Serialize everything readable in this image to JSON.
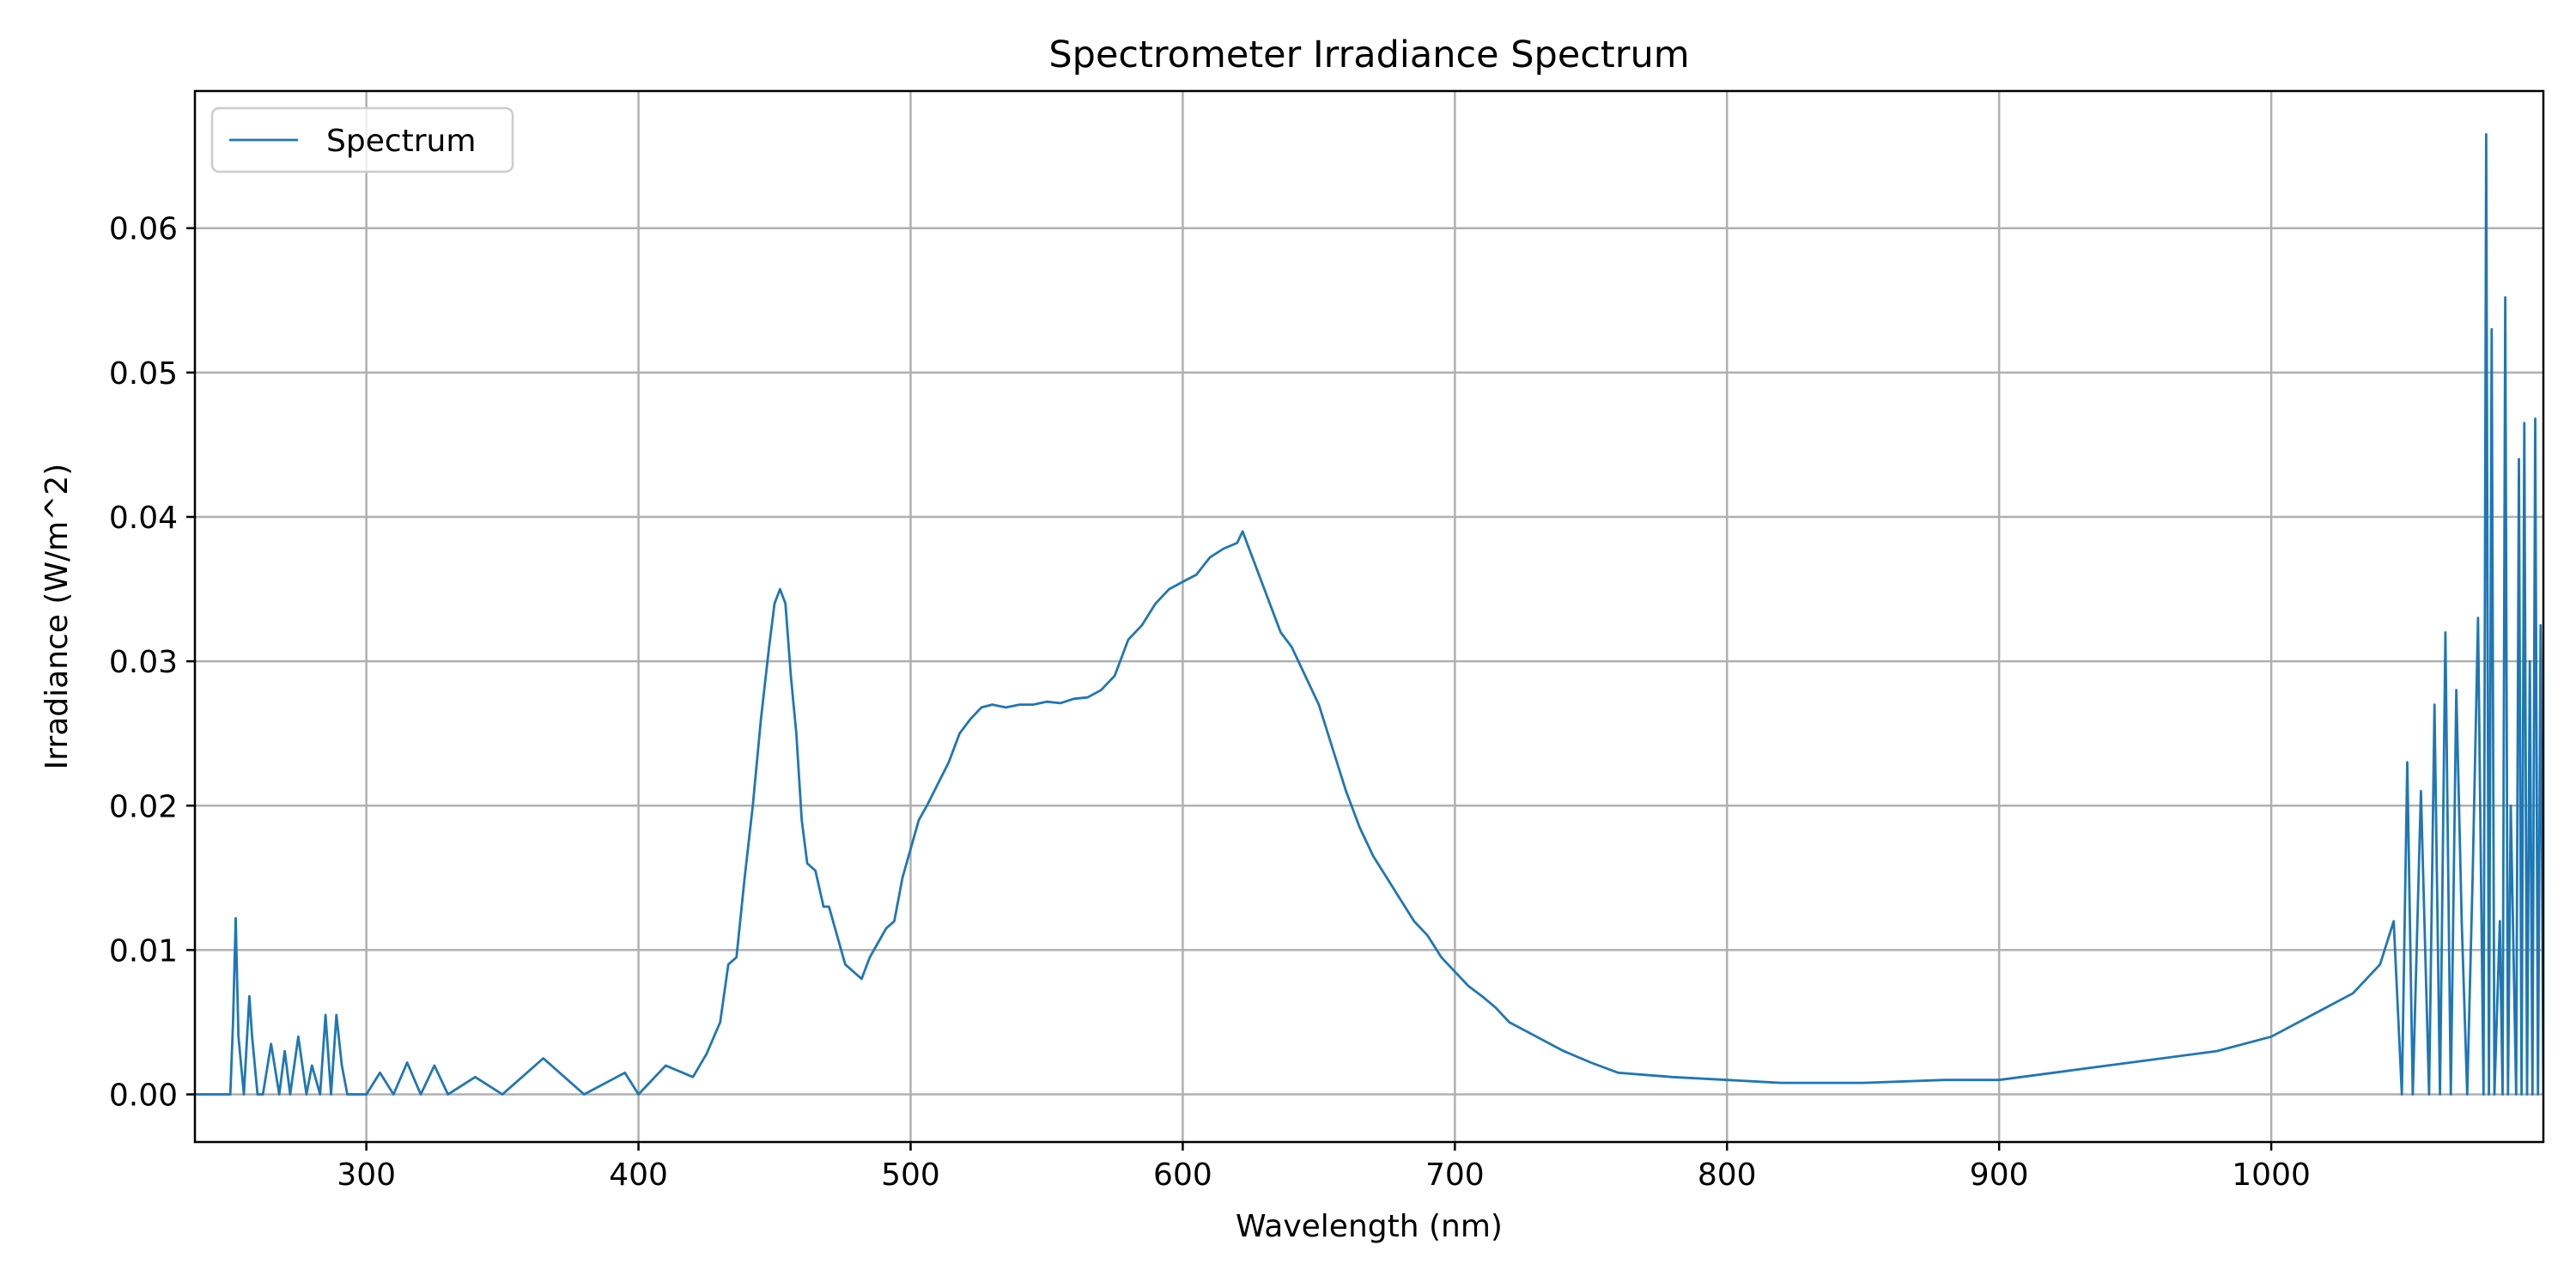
{
  "chart_data": {
    "type": "line",
    "title": "Spectrometer Irradiance Spectrum",
    "xlabel": "Wavelength (nm)",
    "ylabel": "Irradiance (W/m^2)",
    "xlim": [
      237,
      1100
    ],
    "ylim": [
      -0.0033,
      0.0695
    ],
    "xticks": [
      300,
      400,
      500,
      600,
      700,
      800,
      900,
      1000
    ],
    "yticks": [
      0.0,
      0.01,
      0.02,
      0.03,
      0.04,
      0.05,
      0.06
    ],
    "ytick_labels": [
      "0.00",
      "0.01",
      "0.02",
      "0.03",
      "0.04",
      "0.05",
      "0.06"
    ],
    "grid": true,
    "legend": {
      "position": "top-left"
    },
    "color": "#1f77b4",
    "series": [
      {
        "name": "Spectrum",
        "x": [
          237,
          245,
          250,
          251,
          252,
          253,
          255,
          257,
          258,
          260,
          262,
          265,
          268,
          270,
          272,
          275,
          278,
          280,
          283,
          285,
          287,
          289,
          291,
          293,
          296,
          300,
          305,
          310,
          315,
          320,
          325,
          330,
          340,
          350,
          365,
          380,
          395,
          400,
          410,
          420,
          425,
          430,
          433,
          436,
          439,
          442,
          445,
          448,
          450,
          452,
          454,
          456,
          458,
          460,
          462,
          465,
          468,
          470,
          473,
          476,
          479,
          482,
          485,
          488,
          491,
          494,
          497,
          500,
          503,
          506,
          510,
          514,
          518,
          522,
          526,
          530,
          535,
          540,
          545,
          550,
          555,
          560,
          565,
          570,
          575,
          580,
          585,
          590,
          595,
          600,
          605,
          610,
          615,
          620,
          622,
          625,
          628,
          632,
          636,
          640,
          645,
          650,
          655,
          660,
          665,
          670,
          675,
          680,
          685,
          690,
          695,
          700,
          705,
          710,
          715,
          720,
          730,
          740,
          750,
          760,
          780,
          800,
          820,
          850,
          880,
          900,
          920,
          940,
          960,
          980,
          1000,
          1010,
          1020,
          1030,
          1040,
          1045,
          1048,
          1050,
          1052,
          1055,
          1058,
          1060,
          1062,
          1064,
          1066,
          1068,
          1070,
          1072,
          1074,
          1076,
          1078,
          1079,
          1080,
          1081,
          1082,
          1084,
          1085,
          1086,
          1087,
          1088,
          1090,
          1091,
          1092,
          1093,
          1094,
          1095,
          1096,
          1097,
          1098,
          1099,
          1100
        ],
        "y": [
          0.0,
          0.0,
          0.0,
          0.005,
          0.0122,
          0.004,
          0.0,
          0.0068,
          0.004,
          0.0,
          0.0,
          0.0035,
          0.0,
          0.003,
          0.0,
          0.004,
          0.0,
          0.002,
          0.0,
          0.0055,
          0.0,
          0.0055,
          0.002,
          0.0,
          0.0,
          0.0,
          0.0015,
          0.0,
          0.0022,
          0.0,
          0.002,
          0.0,
          0.0012,
          0.0,
          0.0025,
          0.0,
          0.0015,
          0.0,
          0.002,
          0.0012,
          0.0028,
          0.005,
          0.009,
          0.0095,
          0.015,
          0.02,
          0.026,
          0.031,
          0.034,
          0.035,
          0.034,
          0.029,
          0.025,
          0.019,
          0.016,
          0.0155,
          0.013,
          0.013,
          0.011,
          0.009,
          0.0085,
          0.008,
          0.0095,
          0.0105,
          0.0115,
          0.012,
          0.015,
          0.017,
          0.019,
          0.02,
          0.0215,
          0.023,
          0.025,
          0.026,
          0.0268,
          0.027,
          0.0268,
          0.027,
          0.027,
          0.0272,
          0.0271,
          0.0274,
          0.0275,
          0.028,
          0.029,
          0.0315,
          0.0325,
          0.034,
          0.035,
          0.0355,
          0.036,
          0.0372,
          0.0378,
          0.0382,
          0.039,
          0.0375,
          0.036,
          0.034,
          0.032,
          0.031,
          0.029,
          0.027,
          0.024,
          0.021,
          0.0185,
          0.0165,
          0.015,
          0.0135,
          0.012,
          0.011,
          0.0095,
          0.0085,
          0.0075,
          0.0068,
          0.006,
          0.005,
          0.004,
          0.003,
          0.0022,
          0.0015,
          0.0012,
          0.001,
          0.0008,
          0.0008,
          0.001,
          0.001,
          0.0015,
          0.002,
          0.0025,
          0.003,
          0.004,
          0.005,
          0.006,
          0.007,
          0.009,
          0.012,
          0.0,
          0.023,
          0.0,
          0.021,
          0.0,
          0.027,
          0.0,
          0.032,
          0.0,
          0.028,
          0.012,
          0.0,
          0.015,
          0.033,
          0.0,
          0.0665,
          0.0,
          0.053,
          0.0,
          0.012,
          0.0,
          0.0552,
          0.0,
          0.02,
          0.0,
          0.044,
          0.0,
          0.0465,
          0.0,
          0.03,
          0.0,
          0.0468,
          0.0,
          0.0325,
          0.0
        ]
      }
    ]
  }
}
